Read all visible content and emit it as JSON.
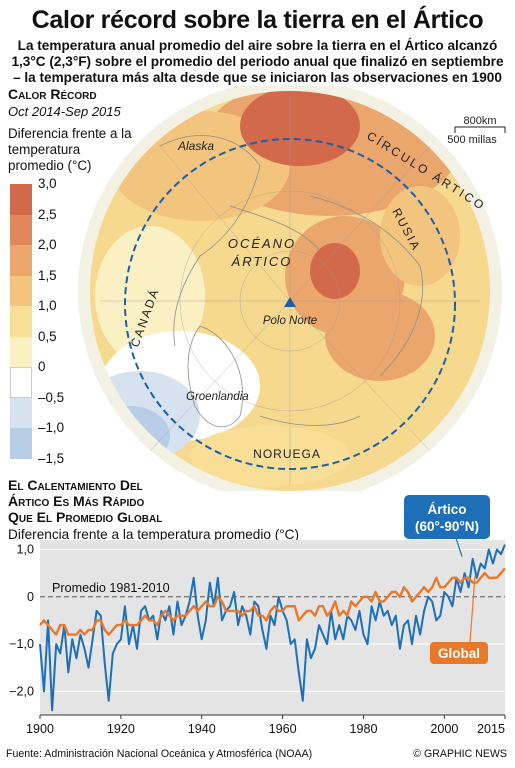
{
  "title": "Calor récord sobre la tierra en el Ártico",
  "subtitle_lines": [
    "La temperatura anual promedio del aire sobre la tierra en el Ártico alcanzó",
    "1,3°C (2,3°F) sobre el promedio del periodo anual que finalizó en septiembre",
    "– la temperatura más alta desde que se iniciaron las observaciones en 1900"
  ],
  "map": {
    "heading": "Calor Récord",
    "period": "Oct 2014-Sep 2015",
    "legend_title_lines": [
      "Diferencia frente a la",
      "temperatura",
      "promedio (°C)"
    ],
    "legend_labels": [
      "3,0",
      "2,5",
      "2,0",
      "1,5",
      "1,0",
      "0,5",
      "0",
      "–0,5",
      "–1,0",
      "–1,5"
    ],
    "legend_colors": [
      "#d2694a",
      "#e2875c",
      "#eba66e",
      "#f2c47e",
      "#f8de96",
      "#fbf0c4",
      "#ffffff",
      "#d6e2ef",
      "#b8cde6",
      "#9db8da"
    ],
    "scale": [
      "800km",
      "500 millas"
    ],
    "labels": {
      "alaska": "Alaska",
      "canada": "CANADÁ",
      "rusia": "RUSIA",
      "ocean_line1": "OCÉANO",
      "ocean_line2": "ÁRTICO",
      "polo": "Polo Norte",
      "groenlandia": "Groenlandia",
      "noruega": "NORUEGA",
      "circle": "CÍRCULO ÁRTICO"
    }
  },
  "chart_title_lines": [
    "El Calentamiento Del",
    "Ártico Es Más Rápido",
    "Que El Promedio Global"
  ],
  "chart_ylabel": "Diferencia frente a la temperatura promedio (°C)",
  "chart_data": {
    "type": "line",
    "title": "El Calentamiento Del Ártico Es Más Rápido Que El Promedio Global",
    "ylabel": "Diferencia frente a la temperatura promedio (°C)",
    "xlim": [
      1900,
      2015
    ],
    "ylim": [
      -2.5,
      1.2
    ],
    "x_ticks": [
      "1900",
      "1920",
      "1940",
      "1960",
      "1980",
      "2000",
      "2015"
    ],
    "y_ticks": [
      "1,0",
      "0",
      "−1,0",
      "−2,0"
    ],
    "reference_line": {
      "label": "Promedio 1981-2010",
      "value": 0
    },
    "series": [
      {
        "name": "Ártico (60°-90°N)",
        "color": "#1d6fb8",
        "x": [
          1900,
          1901,
          1902,
          1903,
          1904,
          1905,
          1906,
          1907,
          1908,
          1909,
          1910,
          1911,
          1912,
          1913,
          1914,
          1915,
          1916,
          1917,
          1918,
          1919,
          1920,
          1921,
          1922,
          1923,
          1924,
          1925,
          1926,
          1927,
          1928,
          1929,
          1930,
          1931,
          1932,
          1933,
          1934,
          1935,
          1936,
          1937,
          1938,
          1939,
          1940,
          1941,
          1942,
          1943,
          1944,
          1945,
          1946,
          1947,
          1948,
          1949,
          1950,
          1951,
          1952,
          1953,
          1954,
          1955,
          1956,
          1957,
          1958,
          1959,
          1960,
          1961,
          1962,
          1963,
          1964,
          1965,
          1966,
          1967,
          1968,
          1969,
          1970,
          1971,
          1972,
          1973,
          1974,
          1975,
          1976,
          1977,
          1978,
          1979,
          1980,
          1981,
          1982,
          1983,
          1984,
          1985,
          1986,
          1987,
          1988,
          1989,
          1990,
          1991,
          1992,
          1993,
          1994,
          1995,
          1996,
          1997,
          1998,
          1999,
          2000,
          2001,
          2002,
          2003,
          2004,
          2005,
          2006,
          2007,
          2008,
          2009,
          2010,
          2011,
          2012,
          2013,
          2014,
          2015
        ],
        "values": [
          -1.0,
          -2.0,
          -0.5,
          -2.4,
          -1.0,
          -1.2,
          -0.6,
          -1.6,
          -0.9,
          -1.3,
          -0.8,
          -1.1,
          -1.5,
          -0.9,
          -0.3,
          -0.4,
          -1.4,
          -2.2,
          -1.2,
          -1.0,
          -0.9,
          -0.2,
          -1.0,
          -0.6,
          -1.1,
          -0.3,
          -0.2,
          -0.5,
          -0.4,
          -0.9,
          -0.3,
          -0.5,
          -0.2,
          -0.8,
          -0.1,
          -0.6,
          -0.4,
          -0.1,
          0.4,
          -0.4,
          -0.9,
          -0.5,
          0.3,
          -0.2,
          0.4,
          -0.5,
          -0.3,
          -0.2,
          0.1,
          -0.6,
          -0.2,
          -0.4,
          -0.8,
          -0.1,
          -0.2,
          -0.7,
          -1.1,
          -0.4,
          -0.6,
          0.0,
          -0.3,
          -0.5,
          -1.0,
          -0.9,
          -1.6,
          -2.2,
          -0.9,
          -1.3,
          -1.1,
          -0.6,
          -0.8,
          -1.0,
          -0.3,
          -0.9,
          -0.6,
          -0.9,
          -0.4,
          -0.5,
          -0.7,
          -0.3,
          -0.8,
          -1.0,
          -0.2,
          -0.5,
          -0.1,
          -0.4,
          -0.3,
          -0.6,
          -0.4,
          -1.1,
          -0.6,
          -0.5,
          -1.0,
          -0.4,
          -0.8,
          -0.3,
          0.0,
          -0.1,
          -0.5,
          -0.4,
          0.1,
          0.0,
          -0.2,
          0.4,
          0.1,
          0.5,
          0.2,
          0.8,
          0.4,
          0.7,
          0.6,
          1.0,
          0.7,
          1.0,
          0.9,
          1.1
        ]
      },
      {
        "name": "Global",
        "color": "#e8782a",
        "x": [
          1900,
          1901,
          1902,
          1903,
          1904,
          1905,
          1906,
          1907,
          1908,
          1909,
          1910,
          1911,
          1912,
          1913,
          1914,
          1915,
          1916,
          1917,
          1918,
          1919,
          1920,
          1921,
          1922,
          1923,
          1924,
          1925,
          1926,
          1927,
          1928,
          1929,
          1930,
          1931,
          1932,
          1933,
          1934,
          1935,
          1936,
          1937,
          1938,
          1939,
          1940,
          1941,
          1942,
          1943,
          1944,
          1945,
          1946,
          1947,
          1948,
          1949,
          1950,
          1951,
          1952,
          1953,
          1954,
          1955,
          1956,
          1957,
          1958,
          1959,
          1960,
          1961,
          1962,
          1963,
          1964,
          1965,
          1966,
          1967,
          1968,
          1969,
          1970,
          1971,
          1972,
          1973,
          1974,
          1975,
          1976,
          1977,
          1978,
          1979,
          1980,
          1981,
          1982,
          1983,
          1984,
          1985,
          1986,
          1987,
          1988,
          1989,
          1990,
          1991,
          1992,
          1993,
          1994,
          1995,
          1996,
          1997,
          1998,
          1999,
          2000,
          2001,
          2002,
          2003,
          2004,
          2005,
          2006,
          2007,
          2008,
          2009,
          2010,
          2011,
          2012,
          2013,
          2014,
          2015
        ],
        "values": [
          -0.6,
          -0.5,
          -0.6,
          -0.7,
          -0.8,
          -0.6,
          -0.6,
          -0.8,
          -0.8,
          -0.8,
          -0.7,
          -0.8,
          -0.7,
          -0.7,
          -0.5,
          -0.5,
          -0.7,
          -0.8,
          -0.7,
          -0.6,
          -0.6,
          -0.5,
          -0.6,
          -0.6,
          -0.6,
          -0.5,
          -0.4,
          -0.5,
          -0.5,
          -0.6,
          -0.4,
          -0.3,
          -0.4,
          -0.5,
          -0.4,
          -0.4,
          -0.4,
          -0.3,
          -0.2,
          -0.3,
          -0.2,
          -0.1,
          -0.2,
          -0.2,
          0.0,
          -0.1,
          -0.3,
          -0.3,
          -0.3,
          -0.3,
          -0.4,
          -0.3,
          -0.3,
          -0.2,
          -0.4,
          -0.4,
          -0.5,
          -0.3,
          -0.2,
          -0.3,
          -0.3,
          -0.2,
          -0.2,
          -0.2,
          -0.5,
          -0.4,
          -0.3,
          -0.3,
          -0.4,
          -0.2,
          -0.2,
          -0.4,
          -0.3,
          -0.1,
          -0.4,
          -0.3,
          -0.4,
          -0.1,
          -0.2,
          -0.1,
          0.0,
          0.0,
          -0.1,
          0.1,
          -0.1,
          -0.1,
          0.0,
          0.1,
          0.1,
          0.0,
          0.2,
          0.1,
          -0.1,
          0.0,
          0.1,
          0.2,
          0.1,
          0.2,
          0.4,
          0.2,
          0.2,
          0.3,
          0.4,
          0.4,
          0.3,
          0.4,
          0.4,
          0.3,
          0.3,
          0.4,
          0.5,
          0.4,
          0.4,
          0.4,
          0.5,
          0.6
        ]
      }
    ]
  },
  "source": "Fuente: Administración Nacional Oceánica y Atmosférica (NOAA)",
  "credit": "© GRAPHIC NEWS"
}
